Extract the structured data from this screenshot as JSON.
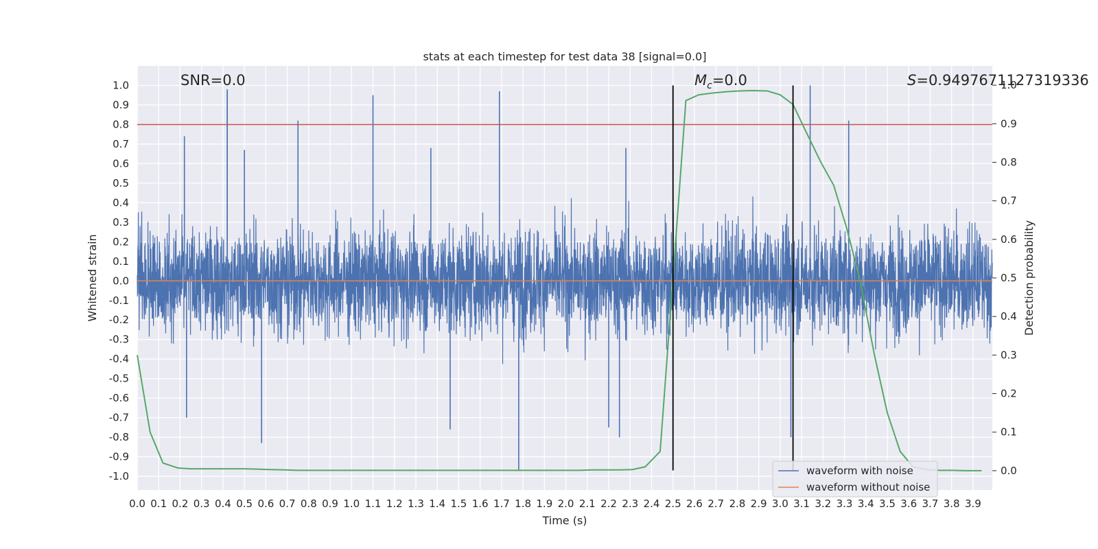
{
  "chart_data": {
    "type": "line",
    "title": "stats at each timestep for test data 38 [signal=0.0]",
    "xlabel": "Time (s)",
    "ylabel": "Whitened strain",
    "y2label": "Detection probability",
    "xlim": [
      0.0,
      3.99
    ],
    "ylim": [
      -1.07,
      1.1
    ],
    "y2lim": [
      -0.05,
      1.05
    ],
    "x_ticks": [
      0.0,
      0.1,
      0.2,
      0.3,
      0.4,
      0.5,
      0.6,
      0.7,
      0.8,
      0.9,
      1.0,
      1.1,
      1.2,
      1.3,
      1.4,
      1.5,
      1.6,
      1.7,
      1.8,
      1.9,
      2.0,
      2.1,
      2.2,
      2.3,
      2.4,
      2.5,
      2.6,
      2.7,
      2.8,
      2.9,
      3.0,
      3.1,
      3.2,
      3.3,
      3.4,
      3.5,
      3.6,
      3.7,
      3.8,
      3.9
    ],
    "y_ticks": [
      -1.0,
      -0.9,
      -0.8,
      -0.7,
      -0.6,
      -0.5,
      -0.4,
      -0.3,
      -0.2,
      -0.1,
      0.0,
      0.1,
      0.2,
      0.3,
      0.4,
      0.5,
      0.6,
      0.7,
      0.8,
      0.9,
      1.0
    ],
    "y2_ticks": [
      0.0,
      0.1,
      0.2,
      0.3,
      0.4,
      0.5,
      0.6,
      0.7,
      0.8,
      0.9,
      1.0
    ],
    "grid": true,
    "legend_position": "lower-right",
    "annotations": {
      "snr": "SNR=0.0",
      "mc_symbol": "M",
      "mc_subscript": "c",
      "mc_value": "=0.0",
      "s_symbol": "S",
      "s_value": "=0.9497671127319336"
    },
    "threshold_line": {
      "y": 0.8,
      "color": "#c44e52"
    },
    "vertical_lines": [
      2.5,
      3.06
    ],
    "noisy_spikes": [
      {
        "x": 0.42,
        "y": 0.98
      },
      {
        "x": 0.42,
        "y": 0.97
      },
      {
        "x": 0.75,
        "y": 0.82
      },
      {
        "x": 1.1,
        "y": 0.95
      },
      {
        "x": 1.69,
        "y": 0.97
      },
      {
        "x": 3.14,
        "y": 1.0
      },
      {
        "x": 3.32,
        "y": 0.82
      },
      {
        "x": 0.22,
        "y": 0.74
      },
      {
        "x": 1.78,
        "y": -0.97
      },
      {
        "x": 0.58,
        "y": -0.83
      },
      {
        "x": 2.25,
        "y": -0.8
      },
      {
        "x": 0.23,
        "y": -0.7
      },
      {
        "x": 1.46,
        "y": -0.76
      },
      {
        "x": 3.05,
        "y": -0.8
      },
      {
        "x": 2.2,
        "y": -0.75
      },
      {
        "x": 1.37,
        "y": 0.68
      },
      {
        "x": 2.28,
        "y": 0.68
      },
      {
        "x": 0.5,
        "y": 0.67
      }
    ],
    "series": [
      {
        "name": "waveform with noise",
        "color": "#4c72b0",
        "description": "dense whitened noise trace"
      },
      {
        "name": "waveform without noise",
        "color": "#dd8452",
        "x": [
          0.0,
          3.99
        ],
        "y": [
          0.0,
          0.0
        ]
      },
      {
        "name": "detection probability",
        "axis": "right",
        "color": "#55a868",
        "x": [
          0.0,
          0.06,
          0.12,
          0.19,
          0.25,
          0.31,
          0.37,
          0.44,
          0.5,
          0.56,
          0.62,
          0.69,
          0.75,
          0.81,
          0.87,
          0.94,
          1.0,
          1.06,
          1.12,
          1.19,
          1.25,
          1.31,
          1.37,
          1.44,
          1.5,
          1.56,
          1.62,
          1.69,
          1.75,
          1.81,
          1.87,
          1.94,
          2.0,
          2.06,
          2.12,
          2.19,
          2.25,
          2.31,
          2.37,
          2.44,
          2.5,
          2.56,
          2.62,
          2.69,
          2.75,
          2.81,
          2.87,
          2.94,
          3.0,
          3.06,
          3.12,
          3.19,
          3.25,
          3.31,
          3.37,
          3.44,
          3.5,
          3.56,
          3.62,
          3.69,
          3.75,
          3.81,
          3.87,
          3.94
        ],
        "y": [
          0.3,
          0.1,
          0.02,
          0.007,
          0.005,
          0.005,
          0.005,
          0.005,
          0.005,
          0.004,
          0.003,
          0.002,
          0.001,
          0.001,
          0.001,
          0.001,
          0.001,
          0.001,
          0.001,
          0.001,
          0.001,
          0.001,
          0.001,
          0.001,
          0.001,
          0.001,
          0.001,
          0.001,
          0.001,
          0.001,
          0.001,
          0.001,
          0.001,
          0.001,
          0.002,
          0.002,
          0.002,
          0.003,
          0.01,
          0.05,
          0.5,
          0.96,
          0.975,
          0.98,
          0.983,
          0.985,
          0.986,
          0.985,
          0.975,
          0.95,
          0.88,
          0.8,
          0.74,
          0.63,
          0.5,
          0.3,
          0.15,
          0.05,
          0.01,
          0.002,
          0.001,
          0.001,
          0.0,
          0.0
        ]
      }
    ]
  }
}
